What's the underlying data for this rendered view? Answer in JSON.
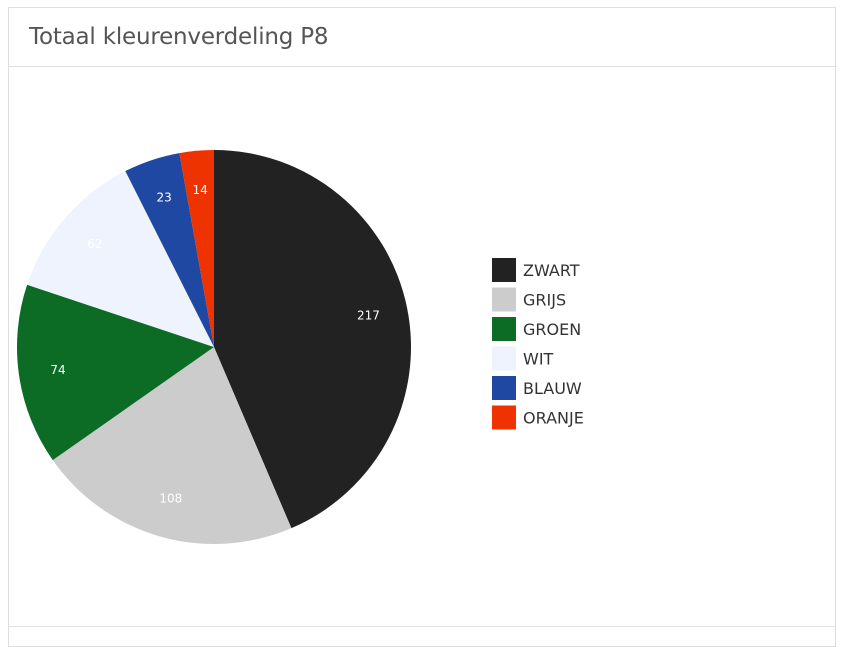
{
  "panel": {
    "title": "Totaal kleurenverdeling P8"
  },
  "chart_data": {
    "type": "pie",
    "title": "Totaal kleurenverdeling P8",
    "legend_position": "right",
    "slices": [
      {
        "label": "ZWART",
        "value": 217,
        "color": "#222222"
      },
      {
        "label": "GRIJS",
        "value": 108,
        "color": "#cccccc"
      },
      {
        "label": "GROEN",
        "value": 74,
        "color": "#0c6b24"
      },
      {
        "label": "WIT",
        "value": 62,
        "color": "#eef3fd"
      },
      {
        "label": "BLAUW",
        "value": 23,
        "color": "#1f48a3"
      },
      {
        "label": "ORANJE",
        "value": 14,
        "color": "#ee3300"
      }
    ]
  }
}
